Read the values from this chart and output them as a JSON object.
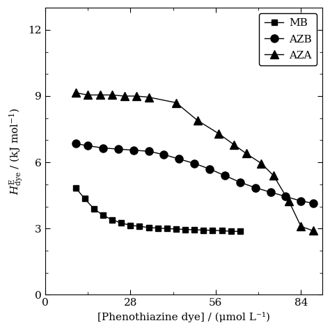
{
  "xlabel": "[Phenothiazine dye] / (μmol L⁻¹)",
  "xlim": [
    0,
    91
  ],
  "ylim": [
    0,
    13
  ],
  "xticks": [
    0,
    28,
    56,
    84
  ],
  "yticks": [
    0,
    3,
    6,
    9,
    12
  ],
  "MB": {
    "x": [
      10,
      13,
      16,
      19,
      22,
      25,
      28,
      31,
      34,
      37,
      40,
      43,
      46,
      49,
      52,
      55,
      58,
      61,
      64
    ],
    "y": [
      4.85,
      4.35,
      3.9,
      3.6,
      3.4,
      3.25,
      3.15,
      3.1,
      3.05,
      3.02,
      3.0,
      2.98,
      2.96,
      2.95,
      2.93,
      2.92,
      2.9,
      2.88,
      2.87
    ]
  },
  "AZB": {
    "x": [
      10,
      14,
      19,
      24,
      29,
      34,
      39,
      44,
      49,
      54,
      59,
      64,
      69,
      74,
      79,
      84,
      88
    ],
    "y": [
      6.85,
      6.75,
      6.65,
      6.6,
      6.55,
      6.5,
      6.35,
      6.15,
      5.95,
      5.7,
      5.4,
      5.1,
      4.85,
      4.65,
      4.45,
      4.25,
      4.15
    ]
  },
  "AZA": {
    "x": [
      10,
      14,
      18,
      22,
      26,
      30,
      34,
      43,
      50,
      57,
      62,
      66,
      71,
      75,
      80,
      84,
      88
    ],
    "y": [
      9.15,
      9.05,
      9.05,
      9.05,
      9.0,
      9.0,
      8.95,
      8.7,
      7.9,
      7.3,
      6.8,
      6.4,
      5.95,
      5.4,
      4.25,
      3.1,
      2.9
    ]
  },
  "color": "#000000",
  "legend_labels": [
    "MB",
    "AZB",
    "AZA"
  ]
}
